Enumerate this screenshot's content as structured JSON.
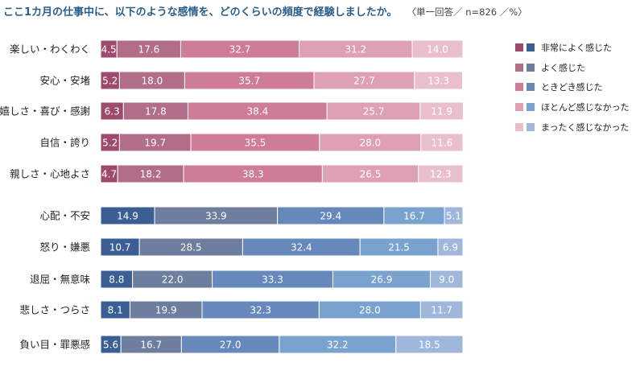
{
  "title": "ここ1カ月の仕事中に、以下のような感情を、どのくらいの頻度で経験しましたか。",
  "note": "〈単一回答／ n=826 ／%〉",
  "legend": [
    "非常によく感じた",
    "よく感じた",
    "ときどき感じた",
    "ほとんど感じなかった",
    "まったく感じなかった"
  ],
  "colors": {
    "positive": [
      "#9e4a6c",
      "#b26e88",
      "#cf7c98",
      "#dea0b4",
      "#e9bfcc"
    ],
    "negative": [
      "#3b5f94",
      "#6e7e9f",
      "#6788bb",
      "#7aa2cf",
      "#9fb7da"
    ]
  },
  "chart_data": {
    "type": "bar",
    "stacked": "100%",
    "orientation": "horizontal",
    "categories": [
      "楽しい・わくわく",
      "安心・安堵",
      "嬉しさ・喜び・感謝",
      "自信・誇り",
      "親しさ・心地よさ",
      "心配・不安",
      "怒り・嫌悪",
      "退屈・無意味",
      "悲しさ・つらさ",
      "負い目・罪悪感"
    ],
    "groups": [
      "positive",
      "positive",
      "positive",
      "positive",
      "positive",
      "negative",
      "negative",
      "negative",
      "negative",
      "negative"
    ],
    "series": [
      {
        "name": "非常によく感じた",
        "values": [
          4.5,
          5.2,
          6.3,
          5.2,
          4.7,
          14.9,
          10.7,
          8.8,
          8.1,
          5.6
        ]
      },
      {
        "name": "よく感じた",
        "values": [
          17.6,
          18.0,
          17.8,
          19.7,
          18.2,
          33.9,
          28.5,
          22.0,
          19.9,
          16.7
        ]
      },
      {
        "name": "ときどき感じた",
        "values": [
          32.7,
          35.7,
          38.4,
          35.5,
          38.3,
          29.4,
          32.4,
          33.3,
          32.3,
          27.0
        ]
      },
      {
        "name": "ほとんど感じなかった",
        "values": [
          31.2,
          27.7,
          25.7,
          28.0,
          26.5,
          16.7,
          21.5,
          26.9,
          28.0,
          32.2
        ]
      },
      {
        "name": "まったく感じなかった",
        "values": [
          14.0,
          13.3,
          11.9,
          11.6,
          12.3,
          5.1,
          6.9,
          9.0,
          11.7,
          18.5
        ]
      }
    ],
    "xlim": [
      0,
      100
    ]
  }
}
